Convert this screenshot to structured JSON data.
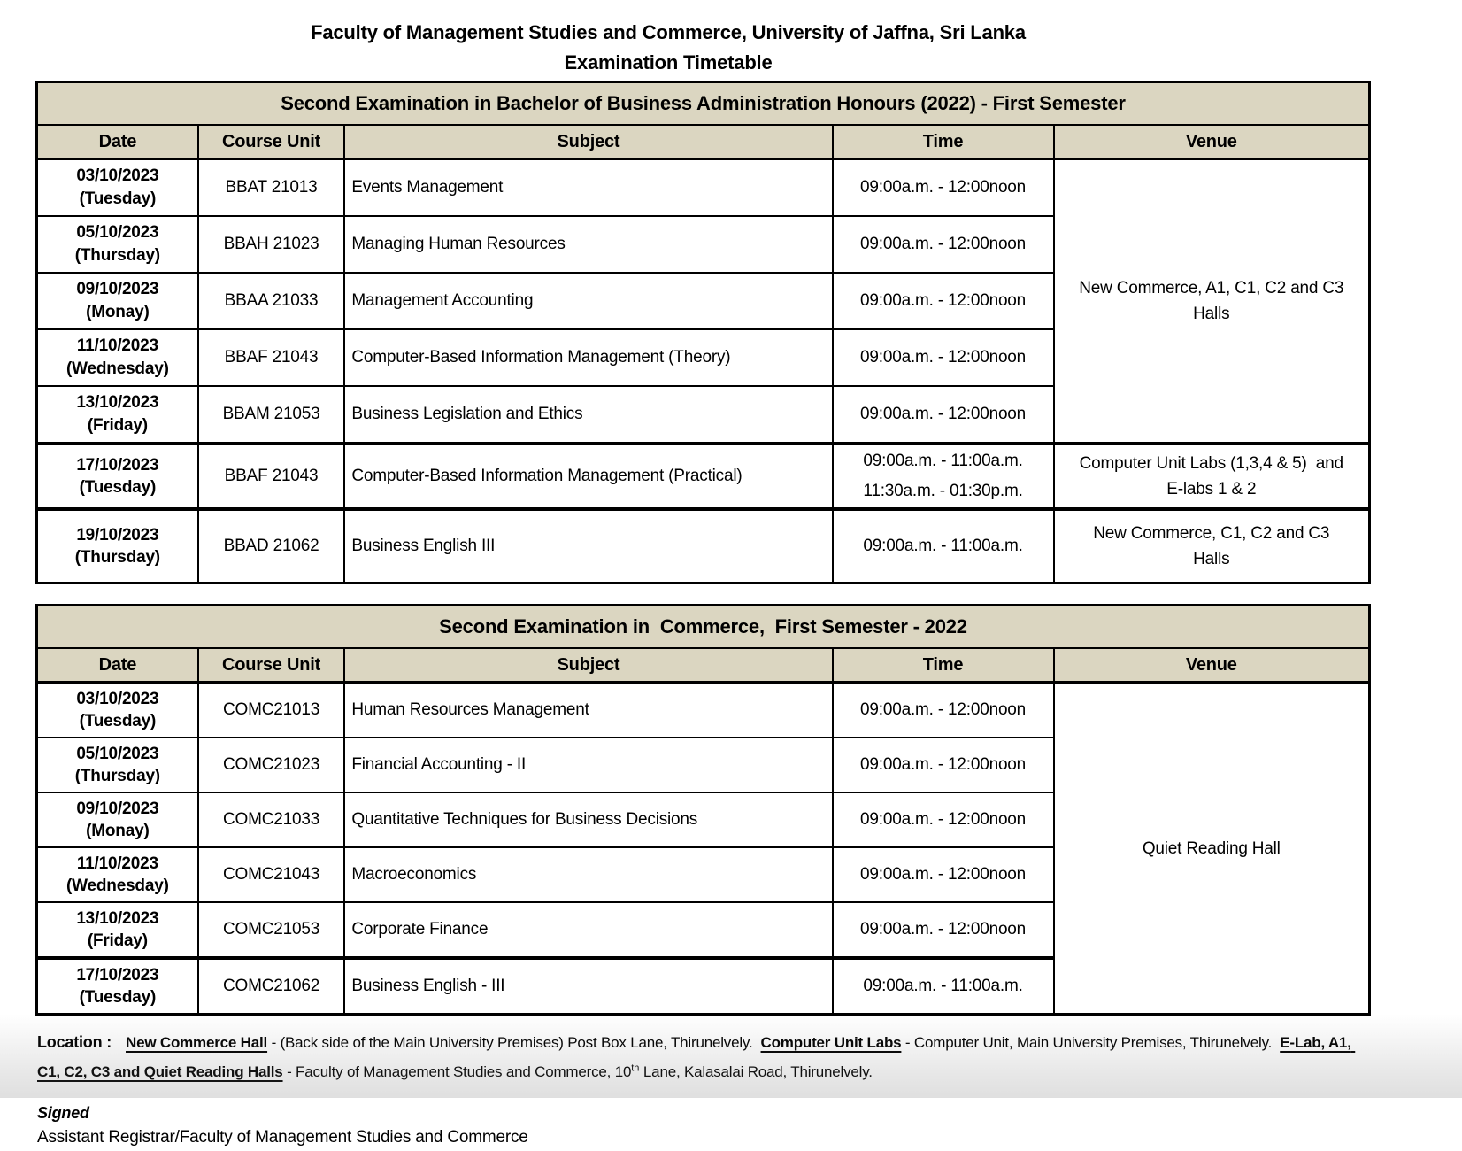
{
  "header": {
    "line1": "Faculty of Management Studies and Commerce, University of Jaffna, Sri Lanka",
    "line2": "Examination Timetable"
  },
  "columns": {
    "date": "Date",
    "course_unit": "Course Unit",
    "subject": "Subject",
    "time": "Time",
    "venue": "Venue"
  },
  "table1": {
    "title": "Second Examination in Bachelor of Business Administration Honours (2022) - First Semester",
    "rows": [
      {
        "date": "03/10/2023",
        "day": "(Tuesday)",
        "course": "BBAT 21013",
        "subject": "Events Management",
        "time": "09:00a.m. - 12:00noon"
      },
      {
        "date": "05/10/2023",
        "day": "(Thursday)",
        "course": "BBAH 21023",
        "subject": "Managing Human Resources",
        "time": "09:00a.m. - 12:00noon"
      },
      {
        "date": "09/10/2023",
        "day": "(Monay)",
        "course": "BBAA 21033",
        "subject": "Management Accounting",
        "time": "09:00a.m. - 12:00noon"
      },
      {
        "date": "11/10/2023",
        "day": "(Wednesday)",
        "course": "BBAF 21043",
        "subject": "Computer-Based Information Management (Theory)",
        "time": "09:00a.m. - 12:00noon"
      },
      {
        "date": "13/10/2023",
        "day": "(Friday)",
        "course": "BBAM 21053",
        "subject": "Business Legislation and Ethics",
        "time": "09:00a.m. - 12:00noon"
      },
      {
        "date": "17/10/2023",
        "day": "(Tuesday)",
        "course": "BBAF 21043",
        "subject": "Computer-Based Information Management (Practical)",
        "time": "09:00a.m. - 11:00a.m.",
        "time2": "11:30a.m. - 01:30p.m."
      },
      {
        "date": "19/10/2023",
        "day": "(Thursday)",
        "course": "BBAD 21062",
        "subject": "Business English III",
        "time": "09:00a.m. - 11:00a.m."
      }
    ],
    "venue_group1_line1": "New Commerce, A1, C1, C2 and C3",
    "venue_group1_line2": "Halls",
    "venue_row6_line1": "Computer Unit Labs (1,3,4 & 5)  and",
    "venue_row6_line2": "E-labs 1 & 2",
    "venue_row7_line1": "New Commerce, C1, C2 and C3",
    "venue_row7_line2": "Halls"
  },
  "table2": {
    "title": "Second Examination in  Commerce,  First Semester - 2022",
    "rows": [
      {
        "date": "03/10/2023",
        "day": "(Tuesday)",
        "course": "COMC21013",
        "subject": "Human Resources Management",
        "time": "09:00a.m. - 12:00noon"
      },
      {
        "date": "05/10/2023",
        "day": "(Thursday)",
        "course": "COMC21023",
        "subject": "Financial Accounting - II",
        "time": "09:00a.m. - 12:00noon"
      },
      {
        "date": "09/10/2023",
        "day": "(Monay)",
        "course": "COMC21033",
        "subject": "Quantitative Techniques for Business Decisions",
        "time": "09:00a.m. - 12:00noon"
      },
      {
        "date": "11/10/2023",
        "day": "(Wednesday)",
        "course": "COMC21043",
        "subject": "Macroeconomics",
        "time": "09:00a.m. - 12:00noon"
      },
      {
        "date": "13/10/2023",
        "day": "(Friday)",
        "course": "COMC21053",
        "subject": "Corporate Finance",
        "time": "09:00a.m. - 12:00noon"
      },
      {
        "date": "17/10/2023",
        "day": "(Tuesday)",
        "course": "COMC21062",
        "subject": "Business English - III",
        "time": "09:00a.m. - 11:00a.m."
      }
    ],
    "venue": "Quiet Reading Hall"
  },
  "location": {
    "label": "Location :",
    "seg1_name": "New Commerce Hall",
    "seg1_rest": " - (Back side of the Main University Premises) Post Box Lane, Thirunelvely.  ",
    "seg2_name": "Computer Unit Labs",
    "seg2_rest": " - Computer Unit, Main University Premises, Thirunelvely.  ",
    "seg3_name": "E-Lab, A1, C1, C2, C3 and Quiet Reading Halls",
    "seg3_rest_a": " - Faculty of Management Studies and Commerce, 10",
    "seg3_sup": "th",
    "seg3_rest_b": " Lane, Kalasalai Road, Thirunelvely."
  },
  "signed": {
    "label": "Signed",
    "name": "Assistant Registrar/Faculty of Management Studies and Commerce"
  },
  "colors": {
    "header_bg": "#dbd6c1",
    "border": "#000000"
  }
}
